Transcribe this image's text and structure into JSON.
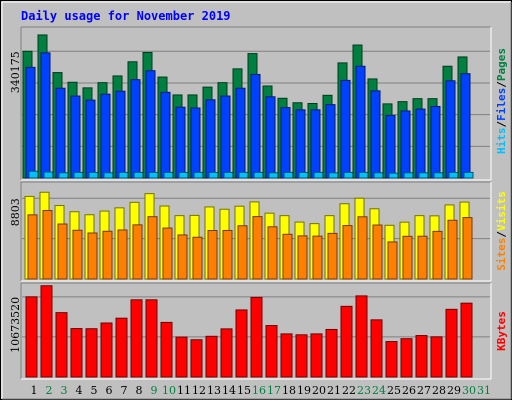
{
  "title": "Daily usage for November 2019",
  "colors": {
    "hits": "#008040",
    "files": "#0040ff",
    "pages": "#00c0ff",
    "visits": "#ffff00",
    "sites": "#ff8000",
    "kbytes": "#ff0000",
    "weekend_label": "#008040",
    "weekday_label": "#000000",
    "title": "#0000ff"
  },
  "chart_data": [
    {
      "type": "bar",
      "panel": "hits-files-pages",
      "ytick_label": "340175",
      "ylim": [
        0,
        400000
      ],
      "categories": [
        "1",
        "2",
        "3",
        "4",
        "5",
        "6",
        "7",
        "8",
        "9",
        "10",
        "11",
        "12",
        "13",
        "14",
        "15",
        "16",
        "17",
        "18",
        "19",
        "20",
        "21",
        "22",
        "23",
        "24",
        "25",
        "26",
        "27",
        "28",
        "29",
        "30",
        "31"
      ],
      "weekend_days": [
        "2",
        "3",
        "9",
        "10",
        "16",
        "17",
        "23",
        "24",
        "30",
        "31"
      ],
      "legend_parts": [
        "Hits",
        "/",
        "Files",
        "/",
        "Pages"
      ],
      "series": [
        {
          "name": "Hits",
          "values": [
            340175,
            384000,
            283000,
            257000,
            242000,
            256000,
            274000,
            312000,
            337000,
            271000,
            223000,
            223000,
            244000,
            256000,
            293000,
            334000,
            247000,
            214000,
            202000,
            200000,
            222000,
            309000,
            357000,
            266000,
            199000,
            205000,
            213000,
            213000,
            300000,
            325000,
            0
          ]
        },
        {
          "name": "Files",
          "values": [
            297000,
            336000,
            241000,
            220000,
            209000,
            225000,
            233000,
            264000,
            288000,
            230000,
            190000,
            188000,
            210000,
            220000,
            241000,
            278000,
            218000,
            189000,
            183000,
            183000,
            197000,
            262000,
            300000,
            234000,
            168000,
            180000,
            185000,
            192000,
            261000,
            280000,
            0
          ]
        },
        {
          "name": "Pages",
          "values": [
            18000,
            16000,
            14000,
            15000,
            15000,
            14000,
            15000,
            15000,
            15000,
            15000,
            15000,
            15000,
            15000,
            15000,
            15000,
            15000,
            14000,
            15000,
            15000,
            15000,
            14000,
            15000,
            15000,
            14000,
            13000,
            14000,
            14000,
            14000,
            15000,
            15000,
            0
          ]
        }
      ]
    },
    {
      "type": "bar",
      "panel": "visits-sites",
      "ytick_label": "8803",
      "ylim": [
        0,
        10350
      ],
      "legend_parts": [
        "Sites",
        "/",
        "Visits"
      ],
      "series": [
        {
          "name": "Visits",
          "values": [
            9000,
            9450,
            8000,
            7330,
            7000,
            7400,
            7750,
            8350,
            9300,
            7950,
            6900,
            6930,
            7850,
            7600,
            7930,
            8400,
            7170,
            6900,
            6200,
            6030,
            6900,
            8200,
            8800,
            7650,
            5850,
            6190,
            6900,
            6880,
            8070,
            8380,
            0
          ]
        },
        {
          "name": "Sites",
          "values": [
            6990,
            7460,
            5990,
            5310,
            5010,
            5200,
            5340,
            5900,
            6790,
            5550,
            4800,
            4550,
            5280,
            5290,
            5800,
            6800,
            5690,
            4870,
            4700,
            4670,
            4970,
            5820,
            6780,
            5880,
            4040,
            4650,
            4660,
            5190,
            6400,
            6690,
            0
          ]
        }
      ]
    },
    {
      "type": "bar",
      "panel": "kbytes",
      "ytick_label": "10673520",
      "ylim": [
        0,
        12250000
      ],
      "legend_parts": [
        "KBytes"
      ],
      "series": [
        {
          "name": "KBytes",
          "values": [
            10673520,
            12150000,
            8570000,
            6450000,
            6430000,
            7190000,
            7830000,
            10280000,
            10280000,
            7270000,
            5320000,
            4960000,
            5420000,
            6410000,
            8930000,
            10600000,
            6850000,
            5740000,
            5620000,
            5740000,
            6330000,
            9410000,
            10800000,
            7610000,
            4720000,
            5100000,
            5520000,
            5350000,
            9010000,
            9830000,
            0
          ]
        }
      ]
    }
  ]
}
